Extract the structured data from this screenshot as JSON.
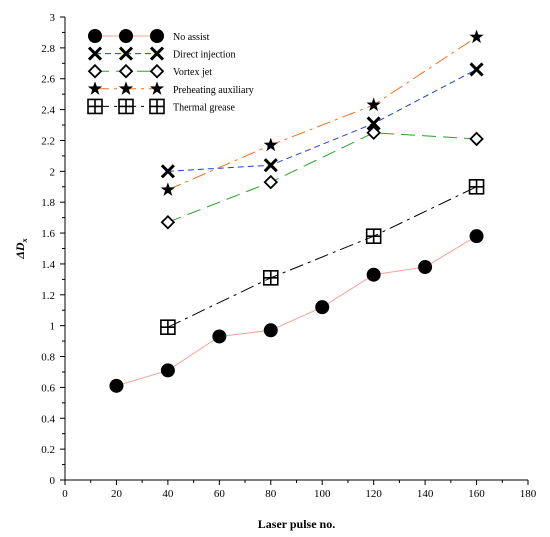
{
  "chart_data": {
    "type": "line",
    "xlabel": "Laser pulse no.",
    "ylabel": "ΔD",
    "ylabel_subscript": "x",
    "xlim": [
      0,
      180
    ],
    "ylim": [
      0,
      3
    ],
    "x_ticks": [
      0,
      20,
      40,
      60,
      80,
      100,
      120,
      140,
      160,
      180
    ],
    "y_ticks": [
      0,
      0.2,
      0.4,
      0.6,
      0.8,
      1,
      1.2,
      1.4,
      1.6,
      1.8,
      2,
      2.2,
      2.4,
      2.6,
      2.8,
      3
    ],
    "grid": false,
    "legend_position": "top-left",
    "series": [
      {
        "name": "No assist",
        "marker": "filled-circle",
        "line_style": "solid",
        "line_color": "#f4a0a0",
        "x": [
          20,
          40,
          60,
          80,
          100,
          120,
          140,
          160
        ],
        "y": [
          0.61,
          0.71,
          0.93,
          0.97,
          1.12,
          1.33,
          1.38,
          1.58
        ]
      },
      {
        "name": "Direct injection",
        "marker": "x-cross",
        "line_style": "dashed",
        "line_color": "#1f3fd6",
        "x": [
          40,
          80,
          120,
          160
        ],
        "y": [
          2.0,
          2.04,
          2.31,
          2.66
        ]
      },
      {
        "name": "Vortex jet",
        "marker": "open-diamond",
        "line_style": "long-dash",
        "line_color": "#2ca02c",
        "x": [
          40,
          80,
          120,
          160
        ],
        "y": [
          1.67,
          1.93,
          2.25,
          2.21
        ]
      },
      {
        "name": "Preheating auxiliary",
        "marker": "filled-star",
        "line_style": "dash-dot",
        "line_color": "#f07020",
        "x": [
          40,
          80,
          120,
          160
        ],
        "y": [
          1.88,
          2.17,
          2.43,
          2.87
        ]
      },
      {
        "name": "Thermal grease",
        "marker": "boxed-plus",
        "line_style": "dash-dot",
        "line_color": "#000000",
        "x": [
          40,
          80,
          120,
          160
        ],
        "y": [
          0.99,
          1.31,
          1.58,
          1.9
        ]
      }
    ]
  }
}
